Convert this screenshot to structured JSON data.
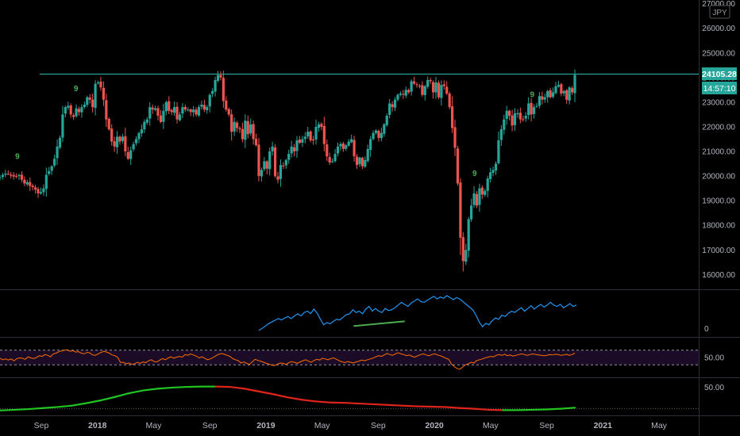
{
  "currency_badge": "JPY",
  "last_price_label": "24105.28",
  "countdown_label": "14:57:10",
  "colors": {
    "background": "#000000",
    "up": "#26a69a",
    "down": "#ef5350",
    "resistance": "#2ba396",
    "indicator_line": "#2196f3",
    "divergence": "#4caf50",
    "rsi_line": "#ff6d00",
    "rsi_band": "#1c0b26",
    "ma_up": "#21c422",
    "ma_down": "#e0241b",
    "axis_text": "#b2b5be",
    "price_label_bg": "#26a69a",
    "setup_marker": "#4caf50"
  },
  "chart_data": [
    {
      "type": "candlestick",
      "title": "",
      "y_ticks": [
        "16000.00",
        "17000.00",
        "18000.00",
        "19000.00",
        "20000.00",
        "21000.00",
        "22000.00",
        "23000.00",
        "24000.00",
        "25000.00",
        "26000.00",
        "27000.00"
      ],
      "ylim": [
        15400,
        27150
      ],
      "x_ticks": [
        "Sep",
        "2018",
        "May",
        "Sep",
        "2019",
        "May",
        "Sep",
        "2020",
        "May",
        "Sep",
        "2021",
        "May"
      ],
      "x_tick_dates": [
        "2017-09",
        "2018-01",
        "2018-05",
        "2018-09",
        "2019-01",
        "2019-05",
        "2019-09",
        "2020-01",
        "2020-05",
        "2020-09",
        "2021-01",
        "2021-05"
      ],
      "x_range": [
        "2017-07",
        "2021-07"
      ],
      "resistance_level": 24140,
      "last_price": 24105.28,
      "setup_markers": [
        {
          "date": "2017-07-10",
          "text": "9"
        },
        {
          "date": "2017-11-15",
          "text": "9"
        },
        {
          "date": "2020-03-27",
          "text": "9"
        },
        {
          "date": "2020-07-30",
          "text": "9"
        }
      ],
      "weekly_closes": [
        19950,
        20050,
        20100,
        20080,
        20020,
        19980,
        20000,
        20050,
        19850,
        19700,
        19750,
        19600,
        19550,
        19450,
        19300,
        19350,
        19500,
        20050,
        20200,
        20400,
        20700,
        21200,
        21550,
        22500,
        22800,
        22850,
        22500,
        22400,
        22750,
        22600,
        22800,
        22900,
        23200,
        23100,
        22800,
        23750,
        23800,
        23600,
        23100,
        22300,
        21900,
        21400,
        21200,
        21600,
        21400,
        21600,
        21000,
        20700,
        21050,
        21300,
        21500,
        21750,
        21900,
        22200,
        22300,
        22800,
        22700,
        22750,
        22450,
        22200,
        22650,
        23000,
        22650,
        22600,
        22800,
        22300,
        22500,
        22800,
        22700,
        22700,
        22600,
        22700,
        22500,
        22800,
        22900,
        22700,
        22800,
        23300,
        23450,
        23900,
        24100,
        24000,
        23050,
        22700,
        22500,
        21800,
        22200,
        21950,
        21900,
        21500,
        22250,
        21700,
        22100,
        21500,
        21250,
        20000,
        20250,
        20600,
        20300,
        21000,
        21200,
        20000,
        19850,
        20450,
        20400,
        20650,
        20900,
        21200,
        21000,
        21450,
        21350,
        21500,
        21600,
        21800,
        21450,
        21450,
        22000,
        22100,
        22000,
        21300,
        20800,
        20550,
        20600,
        20900,
        21200,
        21300,
        21100,
        21250,
        21400,
        21500,
        20800,
        20450,
        20750,
        20400,
        20650,
        21100,
        21500,
        21750,
        21850,
        21550,
        21750,
        22100,
        22450,
        22950,
        22800,
        23100,
        23300,
        23350,
        23300,
        23500,
        23400,
        23850,
        23750,
        23700,
        23650,
        23300,
        23650,
        23900,
        23850,
        23400,
        23800,
        23200,
        23700,
        23650,
        23350,
        22800,
        21950,
        21150,
        19700,
        17500,
        16550,
        17000,
        18250,
        18800,
        19300,
        18800,
        19500,
        19250,
        19400,
        19900,
        20150,
        20250,
        20500,
        21450,
        21900,
        22300,
        22650,
        22450,
        22050,
        22550,
        22550,
        22300,
        22300,
        22450,
        22950,
        22500,
        22800,
        22850,
        23250,
        23100,
        23200,
        23450,
        23200,
        23400,
        23650,
        23700,
        23350,
        23450,
        23100,
        23600,
        23400,
        24105
      ]
    },
    {
      "type": "line",
      "title": "",
      "y_ticks": [
        "0"
      ],
      "series": [
        {
          "values": [
            -5,
            1,
            8,
            15,
            20,
            25,
            30,
            26,
            32,
            36,
            30,
            38,
            44,
            38,
            48,
            52,
            45,
            58,
            46,
            28,
            12,
            18,
            15,
            22,
            28,
            26,
            34,
            42,
            44,
            56,
            48,
            52,
            44,
            58,
            66,
            52,
            60,
            52,
            48,
            60,
            54,
            56,
            62,
            70,
            78,
            72,
            66,
            76,
            82,
            88,
            80,
            78,
            84,
            90,
            96,
            88,
            94,
            90,
            98,
            92,
            86,
            92,
            88,
            80,
            72,
            64,
            56,
            40,
            20,
            6,
            16,
            12,
            24,
            32,
            28,
            40,
            36,
            46,
            52,
            48,
            56,
            62,
            52,
            60,
            68,
            58,
            66,
            72,
            64,
            70,
            78,
            70,
            66,
            72,
            62,
            68,
            74,
            66,
            70
          ]
        }
      ],
      "divergence_line": [
        [
          28,
          8
        ],
        [
          48,
          22
        ]
      ]
    },
    {
      "type": "line",
      "title": "",
      "y_ticks": [
        "50.00"
      ],
      "band": [
        30,
        70
      ],
      "series": [
        {
          "values": [
            48,
            44,
            46,
            43,
            46,
            41,
            47,
            49,
            48,
            45,
            52,
            49,
            47,
            50,
            55,
            53,
            58,
            56,
            52,
            60,
            62,
            66,
            68,
            70,
            71,
            67,
            69,
            65,
            66,
            62,
            60,
            64,
            63,
            57,
            56,
            60,
            64,
            67,
            65,
            62,
            57,
            55,
            50,
            36,
            37,
            33,
            35,
            31,
            33,
            37,
            34,
            38,
            36,
            41,
            44,
            39,
            38,
            43,
            47,
            44,
            49,
            52,
            48,
            51,
            53,
            51,
            58,
            56,
            60,
            57,
            54,
            49,
            52,
            48,
            44,
            46,
            50,
            55,
            59,
            61,
            59,
            56,
            53,
            47,
            44,
            41,
            35,
            38,
            34,
            31,
            39,
            45,
            42,
            40,
            37,
            34,
            32,
            29,
            28,
            32,
            35,
            34,
            31,
            36,
            39,
            37,
            34,
            38,
            41,
            44,
            40,
            37,
            42,
            45,
            43,
            48,
            46,
            44,
            47,
            49,
            45,
            41,
            38,
            36,
            39,
            37,
            35,
            38,
            40,
            43,
            41,
            44,
            46,
            48,
            52,
            55,
            53,
            57,
            61,
            58,
            56,
            60,
            63,
            60,
            58,
            55,
            57,
            53,
            51,
            55,
            58,
            60,
            57,
            55,
            58,
            60,
            57,
            55,
            52,
            48,
            45,
            32,
            25,
            20,
            18,
            24,
            30,
            33,
            37,
            35,
            42,
            44,
            46,
            49,
            51,
            53,
            52,
            56,
            58,
            56,
            59,
            55,
            57,
            54,
            56,
            58,
            60,
            58,
            56,
            58,
            60,
            58,
            57,
            56,
            55,
            56,
            58,
            57,
            59,
            58,
            56,
            57,
            59,
            56,
            58,
            62
          ]
        }
      ]
    },
    {
      "type": "line",
      "title": "",
      "y_ticks": [
        "50.00"
      ],
      "series": [
        {
          "values": [
            -5,
            -3,
            -1,
            2,
            5,
            9,
            16,
            24,
            34,
            45,
            53,
            58,
            61,
            63,
            64,
            64,
            63,
            58,
            50,
            42,
            33,
            26,
            21,
            18,
            17,
            15,
            13,
            11,
            9,
            7,
            6,
            5,
            2,
            0,
            -3,
            -4,
            -4,
            -3,
            -2,
            0,
            3
          ]
        }
      ]
    }
  ]
}
